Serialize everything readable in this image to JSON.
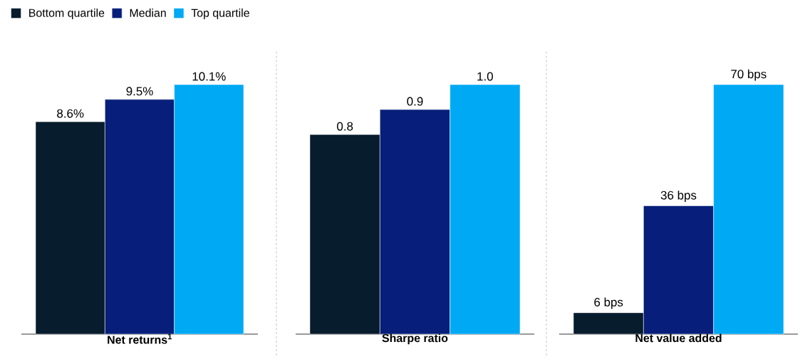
{
  "chart_data": [
    {
      "type": "bar",
      "xlabel": "Net returns$^{1}$",
      "categories": [
        null
      ],
      "legend": "top left",
      "series": [
        {
          "name": "Bottom quartile",
          "color": "#071c2c",
          "values": [
            8.6
          ],
          "value_labels": [
            "8.6%"
          ]
        },
        {
          "name": "Median",
          "color": "#071f7a",
          "values": [
            9.5
          ],
          "value_labels": [
            "9.5%"
          ]
        },
        {
          "name": "Top quartile",
          "color": "#00a9f4",
          "values": [
            10.1
          ],
          "value_labels": [
            "10.1%"
          ]
        }
      ]
    },
    {
      "type": "bar",
      "xlabel": "Sharpe ratio",
      "categories": [
        null
      ],
      "series": [
        {
          "color": "#071c2c",
          "values": [
            0.8
          ],
          "value_labels": [
            "0.8"
          ]
        },
        {
          "color": "#071f7a",
          "values": [
            0.9
          ],
          "value_labels": [
            "0.9"
          ]
        },
        {
          "color": "#00a9f4",
          "values": [
            1.0
          ],
          "value_labels": [
            "1.0"
          ]
        }
      ]
    },
    {
      "type": "bar",
      "xlabel": "Net value added",
      "categories": [
        null
      ],
      "series": [
        {
          "color": "#071c2c",
          "values": [
            6
          ],
          "value_labels": [
            "6 bps"
          ]
        },
        {
          "color": "#071f7a",
          "values": [
            36
          ],
          "value_labels": [
            "36 bps"
          ]
        },
        {
          "color": "#00a9f4",
          "values": [
            70
          ],
          "value_labels": [
            "70 bps"
          ]
        }
      ]
    }
  ]
}
